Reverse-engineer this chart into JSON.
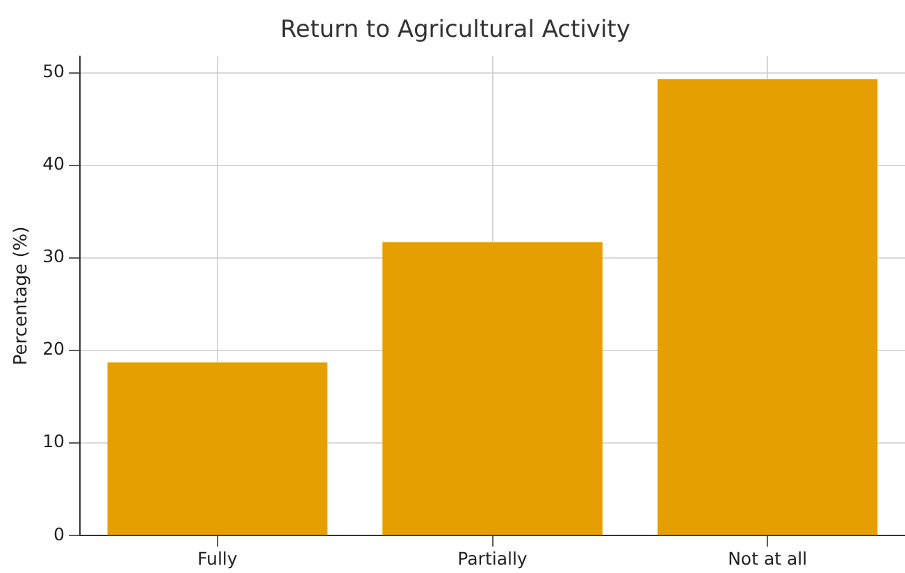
{
  "chart_data": {
    "type": "bar",
    "title": "Return to Agricultural Activity",
    "ylabel": "Percentage (%)",
    "categories": [
      "Fully",
      "Partially",
      "Not at all"
    ],
    "values": [
      18.7,
      31.7,
      49.3
    ],
    "color": "#e69f00",
    "ylim": [
      0,
      51.8
    ],
    "yticks": [
      0,
      10,
      20,
      30,
      40,
      50
    ],
    "grid": true
  }
}
